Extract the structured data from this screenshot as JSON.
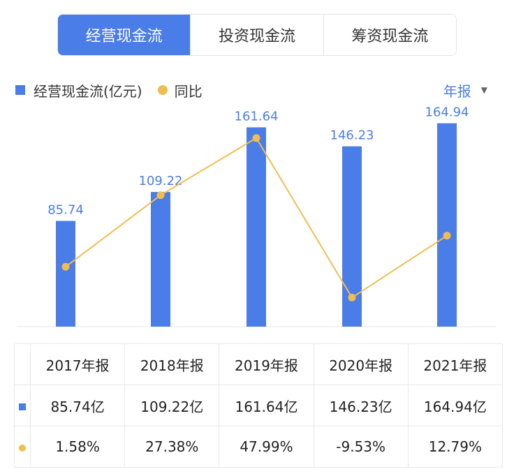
{
  "tabs": [
    {
      "label": "经营现金流",
      "active": true
    },
    {
      "label": "投资现金流",
      "active": false
    },
    {
      "label": "筹资现金流",
      "active": false
    }
  ],
  "legend": {
    "bar_label": "经营现金流(亿元)",
    "line_label": "同比"
  },
  "period_selector": {
    "label": "年报",
    "caret": "▼"
  },
  "colors": {
    "bar": "#4a7de8",
    "line": "#f2bd4f",
    "positive": "#d9534f",
    "negative": "#2e9e54"
  },
  "chart_data": {
    "type": "bar",
    "categories": [
      "2017年报",
      "2018年报",
      "2019年报",
      "2020年报",
      "2021年报"
    ],
    "series": [
      {
        "name": "经营现金流(亿元)",
        "type": "bar",
        "values": [
          85.74,
          109.22,
          161.64,
          146.23,
          164.94
        ]
      },
      {
        "name": "同比",
        "type": "line",
        "values": [
          1.58,
          27.38,
          47.99,
          -9.53,
          12.79
        ]
      }
    ],
    "bar_labels": [
      "85.74",
      "109.22",
      "161.64",
      "146.23",
      "164.94"
    ],
    "ylim": [
      0,
      180
    ],
    "ylim_right": [
      -20,
      60
    ]
  },
  "table": {
    "headers": [
      "2017年报",
      "2018年报",
      "2019年报",
      "2020年报",
      "2021年报"
    ],
    "values": [
      "85.74亿",
      "109.22亿",
      "161.64亿",
      "146.23亿",
      "164.94亿"
    ],
    "growth": [
      "1.58%",
      "27.38%",
      "47.99%",
      "-9.53%",
      "12.79%"
    ]
  }
}
